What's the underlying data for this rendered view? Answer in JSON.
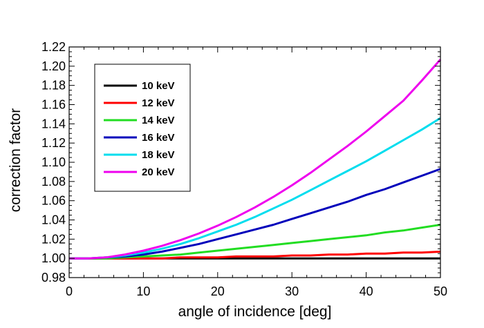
{
  "chart_data": {
    "type": "line",
    "title": "",
    "xlabel": "angle of incidence [deg]",
    "ylabel": "correction factor",
    "xlim": [
      0,
      50
    ],
    "ylim": [
      0.98,
      1.22
    ],
    "x_ticks": [
      0,
      10,
      20,
      30,
      40,
      50
    ],
    "x_tick_labels": [
      "0",
      "10",
      "20",
      "30",
      "40",
      "50"
    ],
    "y_ticks": [
      0.98,
      1.0,
      1.02,
      1.04,
      1.06,
      1.08,
      1.1,
      1.12,
      1.14,
      1.16,
      1.18,
      1.2,
      1.22
    ],
    "y_tick_labels": [
      "0.98",
      "1.00",
      "1.02",
      "1.04",
      "1.06",
      "1.08",
      "1.10",
      "1.12",
      "1.14",
      "1.16",
      "1.18",
      "1.20",
      "1.22"
    ],
    "grid": false,
    "legend_position": "top-left",
    "x": [
      0,
      2.5,
      5,
      7.5,
      10,
      12.5,
      15,
      17.5,
      20,
      22.5,
      25,
      27.5,
      30,
      32.5,
      35,
      37.5,
      40,
      42.5,
      45,
      47.5,
      50
    ],
    "series": [
      {
        "name": "10 keV",
        "color": "#000000",
        "values": [
          1.0,
          1.0,
          1.0,
          1.0,
          1.0,
          1.0,
          1.0,
          1.0,
          1.0,
          1.0,
          1.0,
          1.0,
          1.0,
          1.0,
          1.0,
          1.0,
          1.0,
          1.0,
          1.0,
          1.0,
          1.0
        ]
      },
      {
        "name": "12 keV",
        "color": "#ff0000",
        "values": [
          1.0,
          1.0,
          1.0,
          1.0,
          1.0,
          1.0,
          1.001,
          1.001,
          1.001,
          1.002,
          1.002,
          1.002,
          1.003,
          1.003,
          1.004,
          1.004,
          1.005,
          1.005,
          1.006,
          1.006,
          1.007
        ]
      },
      {
        "name": "14 keV",
        "color": "#22dd22",
        "values": [
          1.0,
          1.0,
          1.0,
          1.001,
          1.002,
          1.003,
          1.004,
          1.006,
          1.008,
          1.01,
          1.012,
          1.014,
          1.016,
          1.018,
          1.02,
          1.022,
          1.024,
          1.027,
          1.029,
          1.032,
          1.035
        ]
      },
      {
        "name": "16 keV",
        "color": "#0000bb",
        "values": [
          1.0,
          1.0,
          1.001,
          1.002,
          1.004,
          1.007,
          1.011,
          1.015,
          1.02,
          1.025,
          1.03,
          1.035,
          1.041,
          1.047,
          1.053,
          1.059,
          1.066,
          1.072,
          1.079,
          1.086,
          1.093
        ]
      },
      {
        "name": "18 keV",
        "color": "#00ddee",
        "values": [
          1.0,
          1.0,
          1.001,
          1.003,
          1.006,
          1.01,
          1.015,
          1.021,
          1.028,
          1.035,
          1.043,
          1.052,
          1.061,
          1.071,
          1.081,
          1.091,
          1.101,
          1.112,
          1.123,
          1.134,
          1.146
        ]
      },
      {
        "name": "20 keV",
        "color": "#ee00ee",
        "values": [
          1.0,
          1.0,
          1.001,
          1.004,
          1.008,
          1.013,
          1.019,
          1.026,
          1.034,
          1.043,
          1.053,
          1.064,
          1.076,
          1.089,
          1.103,
          1.117,
          1.132,
          1.148,
          1.164,
          1.185,
          1.207
        ]
      }
    ]
  }
}
